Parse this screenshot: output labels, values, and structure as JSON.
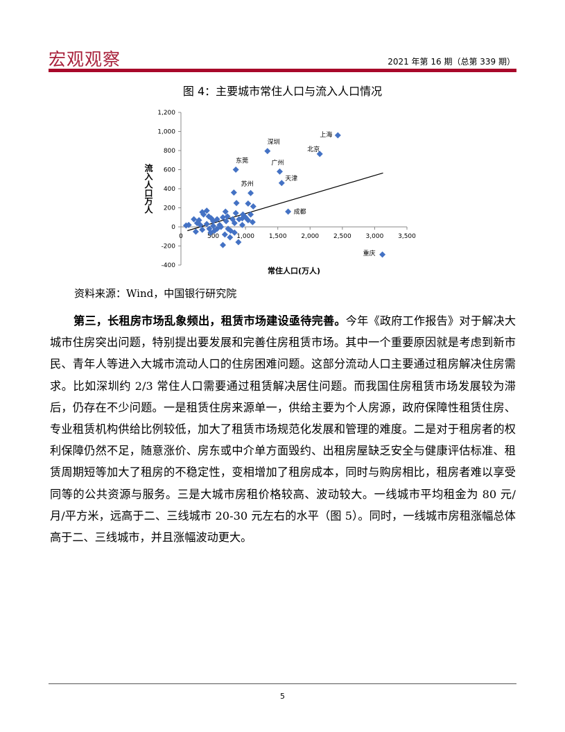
{
  "header": {
    "brand": "宏观观察",
    "issue": "2021 年第 16 期（总第 339 期）"
  },
  "figure": {
    "title": "图 4：主要城市常住人口与流入人口情况",
    "source": "资料来源：Wind，中国银行研究院"
  },
  "chart_data": {
    "type": "scatter",
    "xlabel": "常住人口(万人)",
    "ylabel": "流入人口万人",
    "xlim": [
      0,
      3500
    ],
    "ylim": [
      -400,
      1200
    ],
    "xticks": [
      "0",
      "500",
      "1,000",
      "1,500",
      "2,000",
      "2,500",
      "3,000",
      "3,500"
    ],
    "yticks": [
      "-400",
      "-200",
      "0",
      "200",
      "400",
      "600",
      "800",
      "1,000",
      "1,200"
    ],
    "color": "#4472c4",
    "labeled_points": [
      {
        "label": "上海",
        "x": 2430,
        "y": 960
      },
      {
        "label": "北京",
        "x": 2150,
        "y": 765
      },
      {
        "label": "深圳",
        "x": 1340,
        "y": 795
      },
      {
        "label": "广州",
        "x": 1530,
        "y": 580
      },
      {
        "label": "天津",
        "x": 1560,
        "y": 460
      },
      {
        "label": "东莞",
        "x": 850,
        "y": 600
      },
      {
        "label": "苏州",
        "x": 1080,
        "y": 355
      },
      {
        "label": "成都",
        "x": 1660,
        "y": 160
      },
      {
        "label": "重庆",
        "x": 3120,
        "y": -290
      }
    ],
    "points": [
      [
        820,
        360
      ],
      [
        860,
        250
      ],
      [
        1040,
        245
      ],
      [
        1120,
        215
      ],
      [
        1080,
        130
      ],
      [
        1110,
        50
      ],
      [
        1040,
        70
      ],
      [
        950,
        20
      ],
      [
        960,
        130
      ],
      [
        850,
        145
      ],
      [
        690,
        160
      ],
      [
        720,
        110
      ],
      [
        800,
        80
      ],
      [
        830,
        40
      ],
      [
        830,
        -60
      ],
      [
        890,
        -160
      ],
      [
        650,
        -190
      ],
      [
        680,
        -80
      ],
      [
        760,
        -110
      ],
      [
        770,
        -40
      ],
      [
        730,
        -20
      ],
      [
        400,
        170
      ],
      [
        330,
        155
      ],
      [
        350,
        130
      ],
      [
        200,
        80
      ],
      [
        250,
        40
      ],
      [
        280,
        70
      ],
      [
        300,
        20
      ],
      [
        120,
        20
      ],
      [
        80,
        15
      ],
      [
        230,
        -50
      ],
      [
        330,
        -30
      ],
      [
        430,
        110
      ],
      [
        470,
        90
      ],
      [
        500,
        60
      ],
      [
        560,
        80
      ],
      [
        600,
        20
      ],
      [
        460,
        -60
      ],
      [
        520,
        -40
      ],
      [
        560,
        -20
      ],
      [
        620,
        0
      ],
      [
        400,
        30
      ],
      [
        440,
        -20
      ],
      [
        500,
        10
      ],
      [
        900,
        80
      ],
      [
        950,
        90
      ],
      [
        1000,
        100
      ],
      [
        650,
        100
      ],
      [
        700,
        60
      ]
    ],
    "trendline": [
      [
        100,
        -40
      ],
      [
        3130,
        565
      ]
    ]
  },
  "body": {
    "lead": "第三，长租房市场乱象频出，租赁市场建设亟待完善。",
    "text": "今年《政府工作报告》对于解决大城市住房突出问题，特别提出要发展和完善住房租赁市场。其中一个重要原因就是考虑到新市民、青年人等进入大城市流动人口的住房困难问题。这部分流动人口主要通过租房解决住房需求。比如深圳约 2/3 常住人口需要通过租赁解决居住问题。而我国住房租赁市场发展较为滞后，仍存在不少问题。一是租赁住房来源单一，供给主要为个人房源，政府保障性租赁住房、专业租赁机构供给比例较低，加大了租赁市场规范化发展和管理的难度。二是对于租房者的权利保障仍然不足，随意涨价、房东或中介单方面毁约、出租房屋缺乏安全与健康评估标准、租赁周期短等加大了租房的不稳定性，变相增加了租房成本，同时与购房相比，租房者难以享受同等的公共资源与服务。三是大城市房租价格较高、波动较大。一线城市平均租金为 80 元/月/平方米，远高于二、三线城市 20-30 元左右的水平（图 5）。同时，一线城市房租涨幅总体高于二、三线城市，并且涨幅波动更大。"
  },
  "footer": {
    "page": "5"
  }
}
